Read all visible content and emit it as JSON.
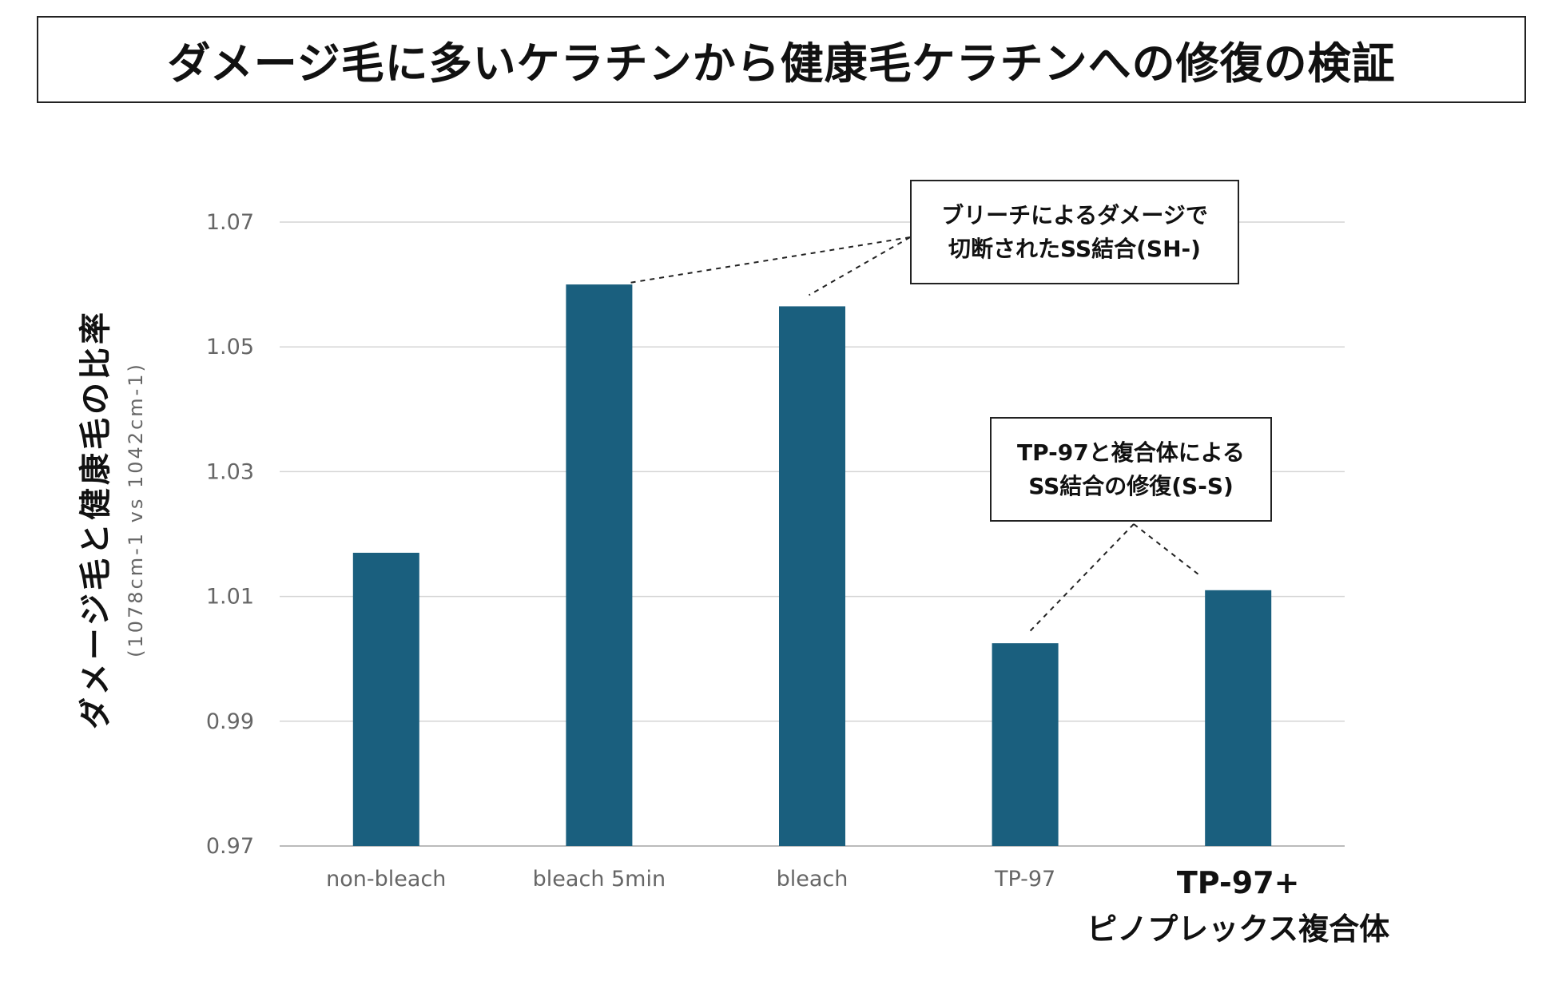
{
  "title": "ダメージ毛に多いケラチンから健康毛ケラチンへの修復の検証",
  "colors": {
    "bar": "#1a5f7e",
    "grid": "#d4d4d4",
    "axis": "#bbbbbb",
    "tick_text": "#666666"
  },
  "chart_data": {
    "type": "bar",
    "categories": [
      "non-bleach",
      "bleach 5min",
      "bleach",
      "TP-97",
      "TP-97+\nピノプレックス複合体"
    ],
    "values": [
      1.017,
      1.06,
      1.0565,
      1.0025,
      1.011
    ],
    "ylabel": "ダメージ毛と健康毛の比率",
    "ylabel_sub": "(1078cm-1 vs 1042cm-1)",
    "ylim": [
      0.97,
      1.07
    ],
    "yticks": [
      "0.97",
      "0.99",
      "1.01",
      "1.03",
      "1.05",
      "1.07"
    ],
    "grid": true,
    "highlight_category": 4,
    "annotations": [
      {
        "lines": [
          "ブリーチによるダメージで",
          "切断されたSS結合(SH-)"
        ],
        "targets": [
          1,
          2
        ]
      },
      {
        "lines": [
          "TP-97と複合体による",
          "SS結合の修復(S-S)"
        ],
        "targets": [
          3,
          4
        ]
      }
    ]
  }
}
